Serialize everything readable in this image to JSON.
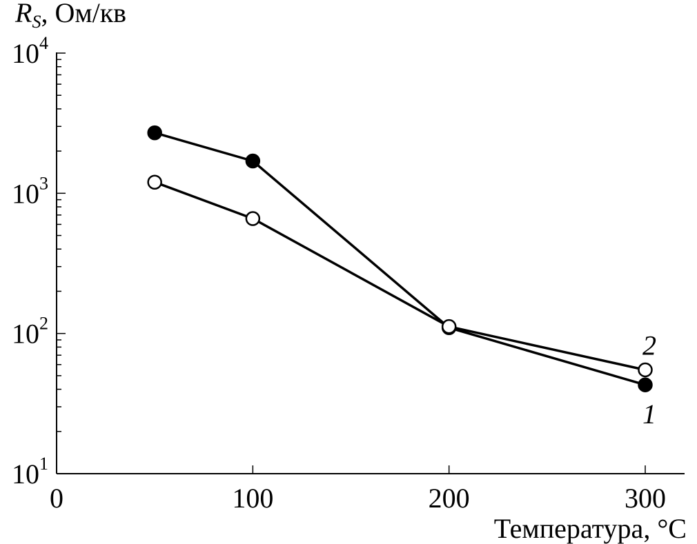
{
  "chart_data": {
    "type": "line",
    "y_scale": "log",
    "xlim": [
      0,
      320
    ],
    "ylim": [
      10,
      10000
    ],
    "x_ticks": [
      0,
      100,
      200,
      300
    ],
    "y_ticks": [
      10,
      100,
      1000,
      10000
    ],
    "x_tick_labels": [
      "0",
      "100",
      "200",
      "300"
    ],
    "y_tick_labels": [
      {
        "base": "10",
        "exp": "1"
      },
      {
        "base": "10",
        "exp": "2"
      },
      {
        "base": "10",
        "exp": "3"
      },
      {
        "base": "10",
        "exp": "4"
      }
    ],
    "ylabel": {
      "symbol": "R",
      "subscript": "S",
      "rest": ", Ом/кв"
    },
    "xlabel": "Температура, °C",
    "grid": false,
    "series": [
      {
        "name": "1",
        "marker": "filled-circle",
        "x": [
          50,
          100,
          200,
          300
        ],
        "y": [
          2700,
          1700,
          110,
          43
        ]
      },
      {
        "name": "2",
        "marker": "open-circle",
        "x": [
          50,
          100,
          200,
          300
        ],
        "y": [
          1200,
          660,
          112,
          55
        ]
      }
    ]
  }
}
